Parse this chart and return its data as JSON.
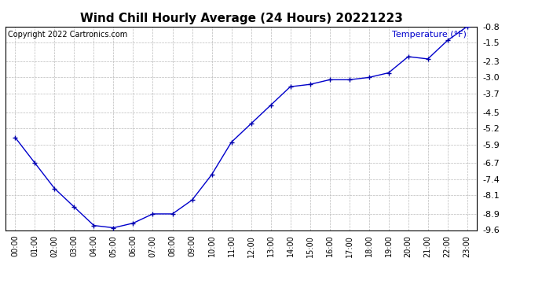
{
  "title": "Wind Chill Hourly Average (24 Hours) 20221223",
  "copyright_text": "Copyright 2022 Cartronics.com",
  "legend_label": "Temperature (°F)",
  "hours": [
    "00:00",
    "01:00",
    "02:00",
    "03:00",
    "04:00",
    "05:00",
    "06:00",
    "07:00",
    "08:00",
    "09:00",
    "10:00",
    "11:00",
    "12:00",
    "13:00",
    "14:00",
    "15:00",
    "16:00",
    "17:00",
    "18:00",
    "19:00",
    "20:00",
    "21:00",
    "22:00",
    "23:00"
  ],
  "values": [
    -5.6,
    -6.7,
    -7.8,
    -8.6,
    -9.4,
    -9.5,
    -9.3,
    -8.9,
    -8.9,
    -8.3,
    -7.2,
    -5.8,
    -5.0,
    -4.2,
    -3.4,
    -3.3,
    -3.1,
    -3.1,
    -3.0,
    -2.8,
    -2.1,
    -2.2,
    -1.4,
    -0.8
  ],
  "ylim_min": -9.6,
  "ylim_max": -0.8,
  "yticks": [
    -9.6,
    -8.9,
    -8.1,
    -7.4,
    -6.7,
    -5.9,
    -5.2,
    -4.5,
    -3.7,
    -3.0,
    -2.3,
    -1.5,
    -0.8
  ],
  "line_color": "#0000cc",
  "marker": "+",
  "marker_color": "#0000aa",
  "title_fontsize": 11,
  "copyright_fontsize": 7,
  "legend_fontsize": 8,
  "legend_color": "#0000cc",
  "background_color": "#ffffff",
  "grid_color": "#bbbbbb",
  "tick_fontsize": 7,
  "ytick_fontsize": 8
}
